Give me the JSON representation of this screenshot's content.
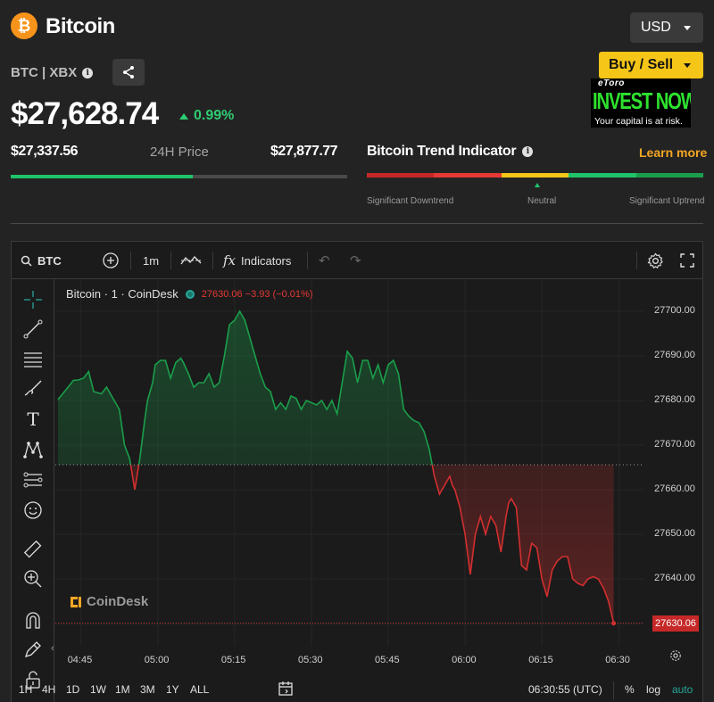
{
  "header": {
    "coin_symbol": "₿",
    "title": "Bitcoin",
    "currency": "USD",
    "ticker": "BTC | XBX",
    "buy_sell_label": "Buy / Sell",
    "price": "$27,628.74",
    "change": "0.99%",
    "change_color": "#2ecc71",
    "low": "$27,337.56",
    "range_label": "24H Price",
    "high": "$27,877.77",
    "range_position": 0.54,
    "trend_title": "Bitcoin Trend Indicator",
    "learn_more": "Learn more",
    "trend_labels": {
      "left": "Significant Downtrend",
      "middle": "Neutral",
      "right": "Significant Uptrend"
    },
    "trend_colors": [
      "#c62828",
      "#e53935",
      "#f5c518",
      "#1fc46a",
      "#1b9e4b"
    ],
    "accent": "#f5c518"
  },
  "ad": {
    "brand": "eToro",
    "slogan": "INVEST NOW",
    "note": "Your capital is at risk."
  },
  "chart_toolbar": {
    "symbol": "BTC",
    "interval": "1m",
    "indicators_label": "Indicators"
  },
  "chart_legend": {
    "name": "Bitcoin · 1 · CoinDesk",
    "ohlc": "27630.06  −3.93 (−0.01%)"
  },
  "watermark": "CoinDesk",
  "bottom_bar": {
    "ranges": [
      "1H",
      "4H",
      "1D",
      "1W",
      "1M",
      "3M",
      "1Y",
      "ALL"
    ],
    "time": "06:30:55 (UTC)",
    "percent": "%",
    "log": "log",
    "auto": "auto",
    "auto_color": "#26a69a"
  },
  "chart_data": {
    "type": "line",
    "title": "",
    "xlabel": "",
    "ylabel": "",
    "ylim": [
      27625,
      27707
    ],
    "baseline": 27665.6,
    "last_price": "27630.06",
    "y_ticks": [
      27700,
      27690,
      27680,
      27670,
      27660,
      27650,
      27640,
      27630
    ],
    "y_tick_labels": [
      "27700.00",
      "27690.00",
      "27680.00",
      "27670.00",
      "27660.00",
      "27650.00",
      "27640.00",
      "27630.00"
    ],
    "x_ticks": [
      "04:45",
      "05:00",
      "05:15",
      "05:30",
      "05:45",
      "06:00",
      "06:15",
      "06:30"
    ],
    "x_tick_minutes": [
      45,
      60,
      75,
      90,
      105,
      120,
      135,
      150
    ],
    "up_color": "#1b9e4b",
    "down_color": "#d32f2f",
    "series": [
      {
        "x": [
          40.5,
          42.5,
          43.5,
          44.5,
          45.5,
          46.5,
          47.5,
          49,
          50,
          51,
          52.5,
          53.5,
          54.5,
          55.5,
          56.5,
          57.5,
          58,
          59,
          59.5,
          60.5,
          61.5,
          62.5,
          63.5,
          64.5,
          65,
          66,
          67,
          68,
          69,
          70,
          71,
          72,
          73,
          74,
          75,
          76,
          77,
          78,
          79,
          80,
          81,
          82,
          83,
          84,
          85,
          86,
          87,
          88,
          89,
          90,
          91,
          92,
          93,
          94,
          95,
          96,
          97,
          98,
          99,
          100,
          101,
          102,
          103,
          104,
          105,
          106,
          107,
          108,
          109,
          110,
          111,
          112,
          113,
          114,
          115,
          116,
          117,
          117.5,
          118,
          119,
          120,
          121,
          122,
          123,
          124,
          125,
          126,
          127,
          128,
          128.5,
          129,
          130,
          131,
          132,
          133,
          134,
          135,
          136,
          137,
          138,
          139,
          140,
          141,
          142,
          143,
          144,
          145,
          146,
          147,
          148,
          149
        ],
        "y": [
          27680.2,
          27683.0,
          27684.5,
          27684.6,
          27685.0,
          27686.5,
          27682.0,
          27681.5,
          27683.0,
          27681.0,
          27678.0,
          27670.0,
          27667.0,
          27660.0,
          27667.0,
          27676.0,
          27680.0,
          27684.0,
          27688.0,
          27689.0,
          27689.0,
          27685.0,
          27688.5,
          27689.5,
          27688.5,
          27686.0,
          27683.0,
          27684.0,
          27684.0,
          27686.0,
          27683.0,
          27684.0,
          27690.0,
          27697.0,
          27698.0,
          27700.0,
          27698.0,
          27694.0,
          27690.0,
          27686.0,
          27683.0,
          27682.0,
          27678.0,
          27679.5,
          27678.0,
          27681.0,
          27680.5,
          27678.0,
          27680.0,
          27679.5,
          27679.0,
          27680.0,
          27678.0,
          27680.0,
          27677.0,
          27684.0,
          27691.0,
          27689.5,
          27684.0,
          27689.0,
          27689.0,
          27685.0,
          27688.0,
          27684.0,
          27688.0,
          27689.0,
          27686.0,
          27678.0,
          27676.5,
          27675.5,
          27675.0,
          27673.0,
          27669.0,
          27663.0,
          27659.0,
          27661.0,
          27663.0,
          27661.0,
          27660.0,
          27656.0,
          27650.0,
          27641.0,
          27650.0,
          27654.0,
          27650.0,
          27654.0,
          27652.0,
          27646.0,
          27654.0,
          27657.0,
          27658.0,
          27656.0,
          27643.0,
          27642.0,
          27648.0,
          27647.0,
          27640.0,
          27636.0,
          27642.0,
          27644.0,
          27645.0,
          27645.0,
          27640.0,
          27639.0,
          27638.5,
          27640.0,
          27640.5,
          27640.0,
          27638.0,
          27635.0,
          27630.06
        ]
      }
    ]
  }
}
